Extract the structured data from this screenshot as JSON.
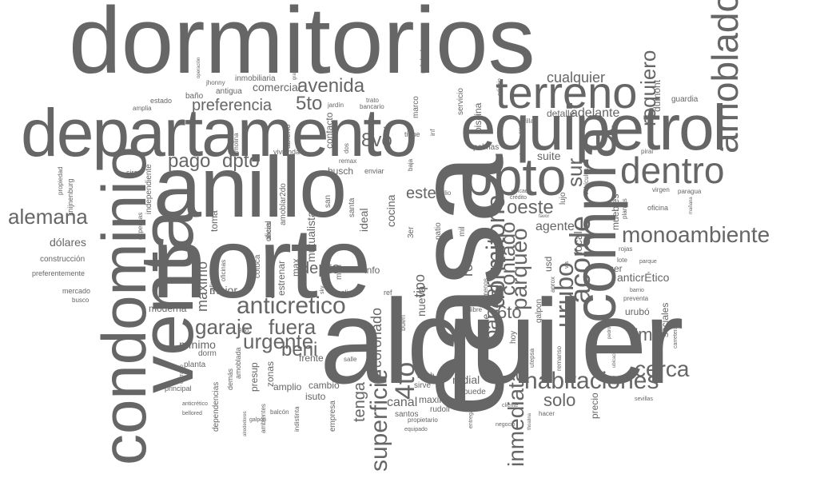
{
  "cloud": {
    "color": "#666666",
    "words": [
      {
        "text": "dormitorios"
      },
      {
        "text": "alquiler"
      },
      {
        "text": "casa"
      },
      {
        "text": "norte"
      },
      {
        "text": "anillo"
      },
      {
        "text": "departamento"
      },
      {
        "text": "venta"
      },
      {
        "text": "condominio"
      },
      {
        "text": "equipetrol"
      },
      {
        "text": "compra"
      },
      {
        "text": "terreno"
      },
      {
        "text": "ppto"
      },
      {
        "text": "amoblado"
      },
      {
        "text": "dentro"
      },
      {
        "text": "monoambiente"
      },
      {
        "text": "anticretico"
      },
      {
        "text": "habitaciones"
      },
      {
        "text": "4to"
      },
      {
        "text": "superficie"
      },
      {
        "text": "urubo"
      },
      {
        "text": "acorde"
      },
      {
        "text": "dormitorio"
      },
      {
        "text": "contado"
      },
      {
        "text": "parqueo"
      },
      {
        "text": "inmediata"
      },
      {
        "text": "cerca"
      },
      {
        "text": "alemana"
      },
      {
        "text": "fuera"
      },
      {
        "text": "garaje"
      },
      {
        "text": "urgente"
      },
      {
        "text": "beni"
      },
      {
        "text": "avenida"
      },
      {
        "text": "5to"
      },
      {
        "text": "preferencia"
      },
      {
        "text": "pago"
      },
      {
        "text": "dpto"
      },
      {
        "text": "requiero"
      },
      {
        "text": "sur"
      },
      {
        "text": "oeste"
      },
      {
        "text": "este"
      },
      {
        "text": "8vo"
      },
      {
        "text": "solo"
      },
      {
        "text": "tenga"
      },
      {
        "text": "banzer"
      },
      {
        "text": "7mo"
      },
      {
        "text": "6to"
      },
      {
        "text": "cualquier"
      },
      {
        "text": "coronado"
      },
      {
        "text": "roca"
      },
      {
        "text": "depto"
      },
      {
        "text": "máximo"
      },
      {
        "text": "mínimo"
      },
      {
        "text": "agente"
      },
      {
        "text": "adelante"
      },
      {
        "text": "detalle"
      },
      {
        "text": "suite"
      },
      {
        "text": "radial"
      },
      {
        "text": "anticrÉtico"
      },
      {
        "text": "dólares"
      },
      {
        "text": "comercial"
      },
      {
        "text": "mutualista"
      },
      {
        "text": "canal"
      },
      {
        "text": "ideal"
      },
      {
        "text": "cocina"
      },
      {
        "text": "tipo"
      },
      {
        "text": "nueva"
      },
      {
        "text": "local"
      },
      {
        "text": "muebles"
      },
      {
        "text": "sociales"
      },
      {
        "text": "dumont"
      },
      {
        "text": "guardia"
      },
      {
        "text": "piscina"
      },
      {
        "text": "servicio"
      },
      {
        "text": "marco"
      },
      {
        "text": "udabol"
      },
      {
        "text": "inmobiliaria"
      },
      {
        "text": "antigua"
      },
      {
        "text": "baño"
      },
      {
        "text": "estado"
      },
      {
        "text": "amplia"
      },
      {
        "text": "jhonny"
      },
      {
        "text": "operación"
      },
      {
        "text": "asesora"
      },
      {
        "text": "gravamen"
      },
      {
        "text": "trato"
      },
      {
        "text": "bancario"
      },
      {
        "text": "jardín"
      },
      {
        "text": "abierto"
      },
      {
        "text": "contacto"
      },
      {
        "text": "remax"
      },
      {
        "text": "enviar"
      },
      {
        "text": "busch"
      },
      {
        "text": "dos"
      },
      {
        "text": "vivienda"
      },
      {
        "text": "molina"
      },
      {
        "text": "sirari"
      },
      {
        "text": "independiente"
      },
      {
        "text": "propiedad"
      },
      {
        "text": "knijnenburg"
      },
      {
        "text": "expensas"
      },
      {
        "text": "construcción"
      },
      {
        "text": "preferentemente"
      },
      {
        "text": "mercado"
      },
      {
        "text": "busco"
      },
      {
        "text": "moderna"
      },
      {
        "text": "mejor"
      },
      {
        "text": "toma"
      },
      {
        "text": "max"
      },
      {
        "text": "estrenar"
      },
      {
        "text": "oficial"
      },
      {
        "text": "amoblar2do"
      },
      {
        "text": "san"
      },
      {
        "text": "santa"
      },
      {
        "text": "mas"
      },
      {
        "text": "info"
      },
      {
        "text": "colina"
      },
      {
        "text": "ref"
      },
      {
        "text": "patio"
      },
      {
        "text": "3er"
      },
      {
        "text": "mil"
      },
      {
        "text": "julio"
      },
      {
        "text": "baja"
      },
      {
        "text": "tiene"
      },
      {
        "text": "c21"
      },
      {
        "text": "inf"
      },
      {
        "text": "edificio"
      },
      {
        "text": "cruz"
      },
      {
        "text": "sala"
      },
      {
        "text": "palmas"
      },
      {
        "text": "lujo"
      },
      {
        "text": "crédito"
      },
      {
        "text": "ubicada"
      },
      {
        "text": "vehículos"
      },
      {
        "text": "plantas"
      },
      {
        "text": "virgen"
      },
      {
        "text": "paragua"
      },
      {
        "text": "mañana"
      },
      {
        "text": "oficina"
      },
      {
        "text": "pirai"
      },
      {
        "text": "favor"
      },
      {
        "text": "usd"
      },
      {
        "text": "sólo"
      },
      {
        "text": "rojas"
      },
      {
        "text": "lote"
      },
      {
        "text": "parque"
      },
      {
        "text": "barrio"
      },
      {
        "text": "preventa"
      },
      {
        "text": "urubó"
      },
      {
        "text": "carretera"
      },
      {
        "text": "esquina"
      },
      {
        "text": "ubicación"
      },
      {
        "text": "pedro"
      },
      {
        "text": "remanso"
      },
      {
        "text": "utepsa"
      },
      {
        "text": "galpon"
      },
      {
        "text": "hoy"
      },
      {
        "text": "baños"
      },
      {
        "text": "doble"
      },
      {
        "text": "característica"
      },
      {
        "text": "urbari"
      },
      {
        "text": "buen"
      },
      {
        "text": "frente"
      },
      {
        "text": "salle"
      },
      {
        "text": "amplio"
      },
      {
        "text": "cambio"
      },
      {
        "text": "isuto"
      },
      {
        "text": "maximo"
      },
      {
        "text": "rudolf"
      },
      {
        "text": "santos"
      },
      {
        "text": "sirve"
      },
      {
        "text": "puede"
      },
      {
        "text": "bush"
      },
      {
        "text": "propietario"
      },
      {
        "text": "equipado"
      },
      {
        "text": "entrega"
      },
      {
        "text": "negocio"
      },
      {
        "text": "cliente"
      },
      {
        "text": "thoalina"
      },
      {
        "text": "hacer"
      },
      {
        "text": "precio"
      },
      {
        "text": "sevillas"
      },
      {
        "text": "empresa"
      },
      {
        "text": "indistinta"
      },
      {
        "text": "balcón"
      },
      {
        "text": "ambientes"
      },
      {
        "text": "galpón"
      },
      {
        "text": "alrededores"
      },
      {
        "text": "dependencias"
      },
      {
        "text": "anticrético"
      },
      {
        "text": "bellored"
      },
      {
        "text": "principal"
      },
      {
        "text": "demás"
      },
      {
        "text": "cerrado"
      },
      {
        "text": "planta"
      },
      {
        "text": "amoblada"
      },
      {
        "text": "dorm"
      },
      {
        "text": "presup"
      },
      {
        "text": "zonas"
      },
      {
        "text": "9no"
      },
      {
        "text": "calle"
      },
      {
        "text": "oficinas"
      },
      {
        "text": "cotoca"
      },
      {
        "text": "áreas"
      },
      {
        "text": "sky"
      },
      {
        "text": "menos"
      },
      {
        "text": "libre"
      },
      {
        "text": "aprox"
      },
      {
        "text": "via"
      },
      {
        "text": "ser"
      },
      {
        "text": "villa"
      }
    ]
  }
}
